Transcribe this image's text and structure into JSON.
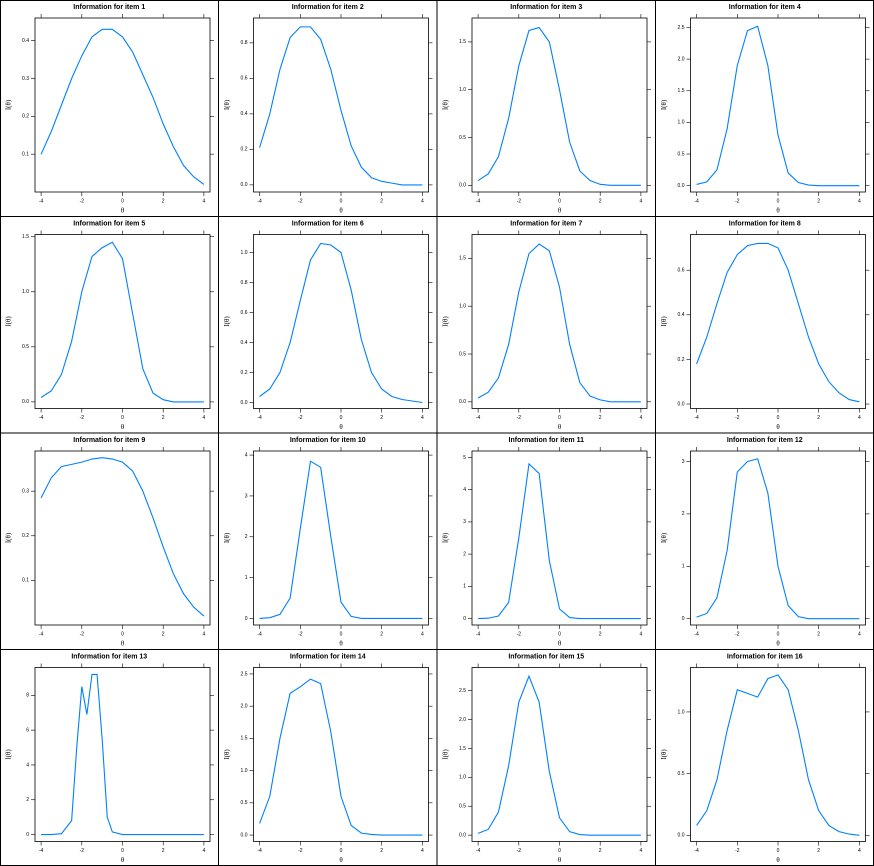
{
  "chart_data": [
    {
      "type": "line",
      "title": "Information for item 1",
      "x_label": "θ",
      "y_label": "I(θ)",
      "color": "#0080ff",
      "x": [
        -4,
        -3.5,
        -3,
        -2.5,
        -2,
        -1.5,
        -1,
        -0.5,
        0,
        0.5,
        1,
        1.5,
        2,
        2.5,
        3,
        3.5,
        4
      ],
      "values": [
        0.1,
        0.16,
        0.23,
        0.3,
        0.36,
        0.41,
        0.43,
        0.43,
        0.41,
        0.37,
        0.31,
        0.25,
        0.18,
        0.12,
        0.07,
        0.04,
        0.02
      ],
      "xlim": [
        -4.3,
        4.3
      ],
      "xticks": [
        -4,
        -2,
        0,
        2,
        4
      ],
      "ylim": [
        0.0,
        0.46
      ],
      "yticks": [
        0.1,
        0.2,
        0.3,
        0.4
      ]
    },
    {
      "type": "line",
      "title": "Information for item 2",
      "x_label": "θ",
      "y_label": "I(θ)",
      "color": "#0080ff",
      "x": [
        -4,
        -3.5,
        -3,
        -2.5,
        -2,
        -1.5,
        -1,
        -0.5,
        0,
        0.5,
        1,
        1.5,
        2,
        2.5,
        3,
        3.5,
        4
      ],
      "values": [
        0.21,
        0.4,
        0.65,
        0.83,
        0.89,
        0.89,
        0.82,
        0.65,
        0.42,
        0.22,
        0.1,
        0.04,
        0.02,
        0.01,
        0.0,
        0.0,
        0.0
      ],
      "xlim": [
        -4.3,
        4.3
      ],
      "xticks": [
        -4,
        -2,
        0,
        2,
        4
      ],
      "ylim": [
        -0.04,
        0.94
      ],
      "yticks": [
        {
          "value": 0,
          "label": "0.0"
        },
        0.2,
        0.4,
        0.6,
        0.8
      ]
    },
    {
      "type": "line",
      "title": "Information for item 3",
      "x_label": "θ",
      "y_label": "I(θ)",
      "color": "#0080ff",
      "x": [
        -4,
        -3.5,
        -3,
        -2.5,
        -2,
        -1.5,
        -1,
        -0.5,
        0,
        0.5,
        1,
        1.5,
        2,
        2.5,
        3,
        3.5,
        4
      ],
      "values": [
        0.05,
        0.12,
        0.3,
        0.7,
        1.25,
        1.62,
        1.65,
        1.5,
        1.0,
        0.45,
        0.15,
        0.05,
        0.01,
        0,
        0,
        0,
        0
      ],
      "xlim": [
        -4.3,
        4.3
      ],
      "xticks": [
        -4,
        -2,
        0,
        2,
        4
      ],
      "ylim": [
        -0.07,
        1.75
      ],
      "yticks": [
        {
          "value": 0,
          "label": "0.0"
        },
        0.5,
        {
          "value": 1,
          "label": "1.0"
        },
        1.5
      ]
    },
    {
      "type": "line",
      "title": "Information for item 4",
      "x_label": "θ",
      "y_label": "I(θ)",
      "color": "#0080ff",
      "x": [
        -4,
        -3.5,
        -3,
        -2.5,
        -2,
        -1.5,
        -1,
        -0.5,
        0,
        0.5,
        1,
        1.5,
        2,
        2.5,
        3,
        3.5,
        4
      ],
      "values": [
        0.02,
        0.06,
        0.25,
        0.9,
        1.9,
        2.45,
        2.52,
        1.9,
        0.8,
        0.2,
        0.05,
        0.01,
        0,
        0,
        0,
        0,
        0
      ],
      "xlim": [
        -4.3,
        4.3
      ],
      "xticks": [
        -4,
        -2,
        0,
        2,
        4
      ],
      "ylim": [
        -0.1,
        2.65
      ],
      "yticks": [
        {
          "value": 0,
          "label": "0.0"
        },
        0.5,
        {
          "value": 1,
          "label": "1.0"
        },
        1.5,
        {
          "value": 2,
          "label": "2.0"
        },
        2.5
      ]
    },
    {
      "type": "line",
      "title": "Information for item 5",
      "x_label": "θ",
      "y_label": "I(θ)",
      "color": "#0080ff",
      "x": [
        -4,
        -3.5,
        -3,
        -2.5,
        -2,
        -1.5,
        -1,
        -0.5,
        0,
        0.5,
        1,
        1.5,
        2,
        2.5,
        3,
        3.5,
        4
      ],
      "values": [
        0.04,
        0.1,
        0.25,
        0.55,
        1.0,
        1.32,
        1.4,
        1.45,
        1.3,
        0.8,
        0.3,
        0.08,
        0.02,
        0,
        0,
        0,
        0
      ],
      "xlim": [
        -4.3,
        4.3
      ],
      "xticks": [
        -4,
        -2,
        0,
        2,
        4
      ],
      "ylim": [
        -0.06,
        1.52
      ],
      "yticks": [
        {
          "value": 0,
          "label": "0.0"
        },
        0.5,
        {
          "value": 1,
          "label": "1.0"
        },
        1.5
      ]
    },
    {
      "type": "line",
      "title": "Information for item 6",
      "x_label": "θ",
      "y_label": "I(θ)",
      "color": "#0080ff",
      "x": [
        -4,
        -3.5,
        -3,
        -2.5,
        -2,
        -1.5,
        -1,
        -0.5,
        0,
        0.5,
        1,
        1.5,
        2,
        2.5,
        3,
        3.5,
        4
      ],
      "values": [
        0.04,
        0.09,
        0.2,
        0.4,
        0.68,
        0.95,
        1.06,
        1.05,
        1.0,
        0.75,
        0.42,
        0.2,
        0.09,
        0.04,
        0.02,
        0.01,
        0.0
      ],
      "xlim": [
        -4.3,
        4.3
      ],
      "xticks": [
        -4,
        -2,
        0,
        2,
        4
      ],
      "ylim": [
        -0.04,
        1.12
      ],
      "yticks": [
        {
          "value": 0,
          "label": "0.0"
        },
        0.2,
        0.4,
        0.6,
        0.8,
        {
          "value": 1,
          "label": "1.0"
        }
      ]
    },
    {
      "type": "line",
      "title": "Information for item 7",
      "x_label": "θ",
      "y_label": "I(θ)",
      "color": "#0080ff",
      "x": [
        -4,
        -3.5,
        -3,
        -2.5,
        -2,
        -1.5,
        -1,
        -0.5,
        0,
        0.5,
        1,
        1.5,
        2,
        2.5,
        3,
        3.5,
        4
      ],
      "values": [
        0.04,
        0.1,
        0.25,
        0.6,
        1.15,
        1.55,
        1.65,
        1.58,
        1.2,
        0.6,
        0.2,
        0.06,
        0.02,
        0,
        0,
        0,
        0
      ],
      "xlim": [
        -4.3,
        4.3
      ],
      "xticks": [
        -4,
        -2,
        0,
        2,
        4
      ],
      "ylim": [
        -0.07,
        1.75
      ],
      "yticks": [
        {
          "value": 0,
          "label": "0.0"
        },
        0.5,
        {
          "value": 1,
          "label": "1.0"
        },
        1.5
      ]
    },
    {
      "type": "line",
      "title": "Information for item 8",
      "x_label": "θ",
      "y_label": "I(θ)",
      "color": "#0080ff",
      "x": [
        -4,
        -3.5,
        -3,
        -2.5,
        -2,
        -1.5,
        -1,
        -0.5,
        0,
        0.5,
        1,
        1.5,
        2,
        2.5,
        3,
        3.5,
        4
      ],
      "values": [
        0.18,
        0.3,
        0.45,
        0.59,
        0.67,
        0.71,
        0.72,
        0.72,
        0.7,
        0.6,
        0.45,
        0.3,
        0.18,
        0.1,
        0.05,
        0.02,
        0.01
      ],
      "xlim": [
        -4.3,
        4.3
      ],
      "xticks": [
        -4,
        -2,
        0,
        2,
        4
      ],
      "ylim": [
        -0.02,
        0.76
      ],
      "yticks": [
        {
          "value": 0,
          "label": "0.0"
        },
        0.2,
        0.4,
        0.6
      ]
    },
    {
      "type": "line",
      "title": "Information for item 9",
      "x_label": "θ",
      "y_label": "I(θ)",
      "color": "#0080ff",
      "x": [
        -4,
        -3.5,
        -3,
        -2.5,
        -2,
        -1.5,
        -1,
        -0.5,
        0,
        0.5,
        1,
        1.5,
        2,
        2.5,
        3,
        3.5,
        4
      ],
      "values": [
        0.285,
        0.33,
        0.355,
        0.36,
        0.365,
        0.372,
        0.375,
        0.372,
        0.365,
        0.345,
        0.3,
        0.24,
        0.175,
        0.115,
        0.07,
        0.04,
        0.02
      ],
      "xlim": [
        -4.3,
        4.3
      ],
      "xticks": [
        -4,
        -2,
        0,
        2,
        4
      ],
      "ylim": [
        0.0,
        0.39
      ],
      "yticks": [
        0.1,
        0.2,
        0.3
      ]
    },
    {
      "type": "line",
      "title": "Information for item 10",
      "x_label": "θ",
      "y_label": "I(θ)",
      "color": "#0080ff",
      "x": [
        -4,
        -3.5,
        -3,
        -2.5,
        -2,
        -1.5,
        -1,
        -0.5,
        0,
        0.5,
        1,
        1.5,
        2,
        2.5,
        3,
        3.5,
        4
      ],
      "values": [
        0,
        0.02,
        0.1,
        0.5,
        2.2,
        3.85,
        3.7,
        2.0,
        0.4,
        0.05,
        0,
        0,
        0,
        0,
        0,
        0,
        0
      ],
      "xlim": [
        -4.3,
        4.3
      ],
      "xticks": [
        -4,
        -2,
        0,
        2,
        4
      ],
      "ylim": [
        -0.16,
        4.1
      ],
      "yticks": [
        0,
        1,
        2,
        3,
        4
      ]
    },
    {
      "type": "line",
      "title": "Information for item 11",
      "x_label": "θ",
      "y_label": "I(θ)",
      "color": "#0080ff",
      "x": [
        -4,
        -3.5,
        -3,
        -2.5,
        -2,
        -1.5,
        -1,
        -0.5,
        0,
        0.5,
        1,
        1.5,
        2,
        2.5,
        3,
        3.5,
        4
      ],
      "values": [
        0,
        0.01,
        0.08,
        0.5,
        2.5,
        4.8,
        4.5,
        1.8,
        0.3,
        0.03,
        0,
        0,
        0,
        0,
        0,
        0,
        0
      ],
      "xlim": [
        -4.3,
        4.3
      ],
      "xticks": [
        -4,
        -2,
        0,
        2,
        4
      ],
      "ylim": [
        -0.2,
        5.2
      ],
      "yticks": [
        0,
        1,
        2,
        3,
        4,
        5
      ]
    },
    {
      "type": "line",
      "title": "Information for item 12",
      "x_label": "θ",
      "y_label": "I(θ)",
      "color": "#0080ff",
      "x": [
        -4,
        -3.5,
        -3,
        -2.5,
        -2,
        -1.5,
        -1,
        -0.5,
        0,
        0.5,
        1,
        1.5,
        2,
        2.5,
        3,
        3.5,
        4
      ],
      "values": [
        0.03,
        0.1,
        0.4,
        1.3,
        2.8,
        3.0,
        3.05,
        2.4,
        1.0,
        0.25,
        0.04,
        0,
        0,
        0,
        0,
        0,
        0
      ],
      "xlim": [
        -4.3,
        4.3
      ],
      "xticks": [
        -4,
        -2,
        0,
        2,
        4
      ],
      "ylim": [
        -0.12,
        3.2
      ],
      "yticks": [
        0,
        1,
        2,
        3
      ]
    },
    {
      "type": "line",
      "title": "Information for item 13",
      "x_label": "θ",
      "y_label": "I(θ)",
      "color": "#0080ff",
      "x": [
        -4,
        -3.5,
        -3,
        -2.5,
        -2.25,
        -2,
        -1.75,
        -1.5,
        -1.25,
        -1,
        -0.75,
        -0.5,
        0,
        0.5,
        1,
        1.5,
        2,
        2.5,
        3,
        3.5,
        4
      ],
      "values": [
        0,
        0,
        0.05,
        0.8,
        5.0,
        8.5,
        6.9,
        9.2,
        9.2,
        5.5,
        1.0,
        0.15,
        0,
        0,
        0,
        0,
        0,
        0,
        0,
        0,
        0
      ],
      "xlim": [
        -4.3,
        4.3
      ],
      "xticks": [
        -4,
        -2,
        0,
        2,
        4
      ],
      "ylim": [
        -0.4,
        9.6
      ],
      "yticks": [
        0,
        2,
        4,
        6,
        8
      ]
    },
    {
      "type": "line",
      "title": "Information for item 14",
      "x_label": "θ",
      "y_label": "I(θ)",
      "color": "#0080ff",
      "x": [
        -4,
        -3.5,
        -3,
        -2.5,
        -2,
        -1.5,
        -1,
        -0.5,
        0,
        0.5,
        1,
        1.5,
        2,
        2.5,
        3,
        3.5,
        4
      ],
      "values": [
        0.18,
        0.6,
        1.5,
        2.2,
        2.3,
        2.42,
        2.35,
        1.6,
        0.6,
        0.15,
        0.03,
        0.01,
        0,
        0,
        0,
        0,
        0
      ],
      "xlim": [
        -4.3,
        4.3
      ],
      "xticks": [
        -4,
        -2,
        0,
        2,
        4
      ],
      "ylim": [
        -0.1,
        2.6
      ],
      "yticks": [
        {
          "value": 0,
          "label": "0.0"
        },
        0.5,
        {
          "value": 1,
          "label": "1.0"
        },
        1.5,
        {
          "value": 2,
          "label": "2.0"
        },
        2.5
      ]
    },
    {
      "type": "line",
      "title": "Information for item 15",
      "x_label": "θ",
      "y_label": "I(θ)",
      "color": "#0080ff",
      "x": [
        -4,
        -3.5,
        -3,
        -2.5,
        -2,
        -1.5,
        -1,
        -0.5,
        0,
        0.5,
        1,
        1.5,
        2,
        2.5,
        3,
        3.5,
        4
      ],
      "values": [
        0.03,
        0.1,
        0.4,
        1.2,
        2.3,
        2.75,
        2.3,
        1.1,
        0.3,
        0.06,
        0.01,
        0,
        0,
        0,
        0,
        0,
        0
      ],
      "xlim": [
        -4.3,
        4.3
      ],
      "xticks": [
        -4,
        -2,
        0,
        2,
        4
      ],
      "ylim": [
        -0.11,
        2.9
      ],
      "yticks": [
        {
          "value": 0,
          "label": "0.0"
        },
        0.5,
        {
          "value": 1,
          "label": "1.0"
        },
        1.5,
        {
          "value": 2,
          "label": "2.0"
        },
        2.5
      ]
    },
    {
      "type": "line",
      "title": "Information for item 16",
      "x_label": "θ",
      "y_label": "I(θ)",
      "color": "#0080ff",
      "x": [
        -4,
        -3.5,
        -3,
        -2.5,
        -2,
        -1.5,
        -1,
        -0.5,
        0,
        0.5,
        1,
        1.5,
        2,
        2.5,
        3,
        3.5,
        4
      ],
      "values": [
        0.08,
        0.2,
        0.45,
        0.85,
        1.18,
        1.15,
        1.12,
        1.27,
        1.3,
        1.18,
        0.85,
        0.45,
        0.2,
        0.08,
        0.03,
        0.01,
        0.0
      ],
      "xlim": [
        -4.3,
        4.3
      ],
      "xticks": [
        -4,
        -2,
        0,
        2,
        4
      ],
      "ylim": [
        -0.05,
        1.36
      ],
      "yticks": [
        {
          "value": 0,
          "label": "0.0"
        },
        0.5,
        {
          "value": 1,
          "label": "1.0"
        }
      ]
    }
  ]
}
